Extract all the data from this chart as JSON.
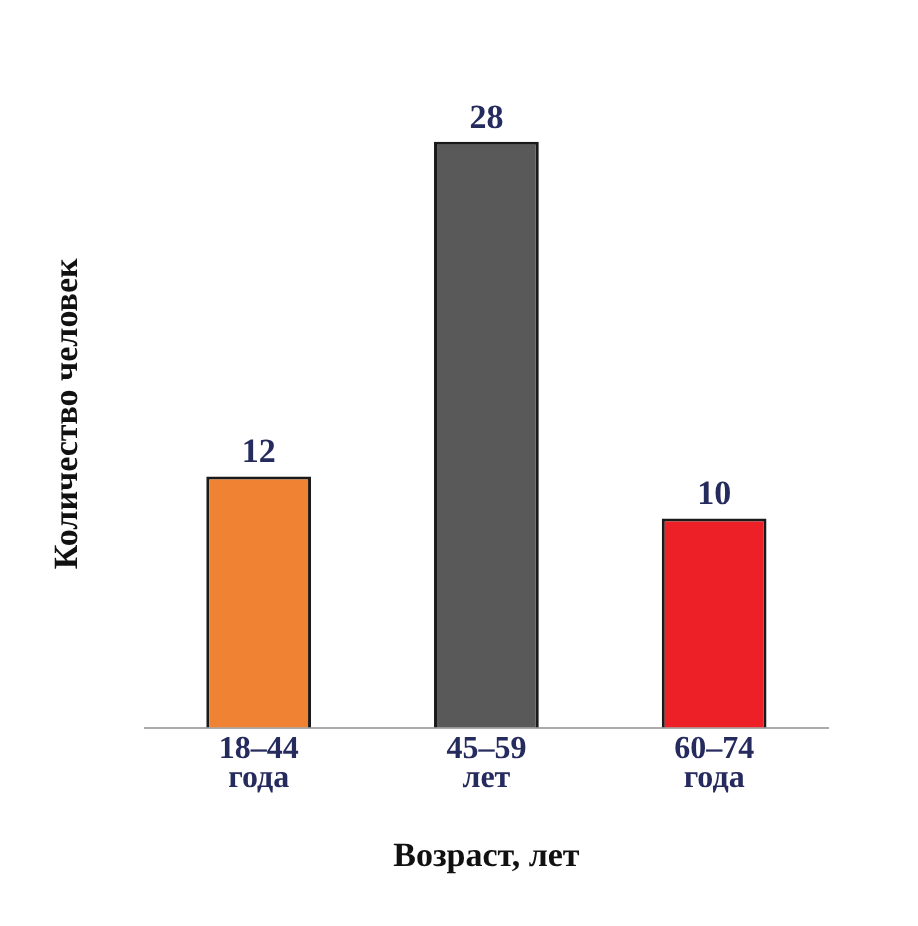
{
  "chart_data": {
    "type": "bar",
    "xlabel": "Возраст, лет",
    "ylabel": "Количество человек",
    "categories": [
      "18–44 года",
      "45–59 лет",
      "60–74 года"
    ],
    "values": [
      12,
      28,
      10
    ],
    "colors": [
      "#ef8233",
      "#595959",
      "#ee2027"
    ],
    "data_labels": true,
    "grid": false,
    "legend": false
  }
}
